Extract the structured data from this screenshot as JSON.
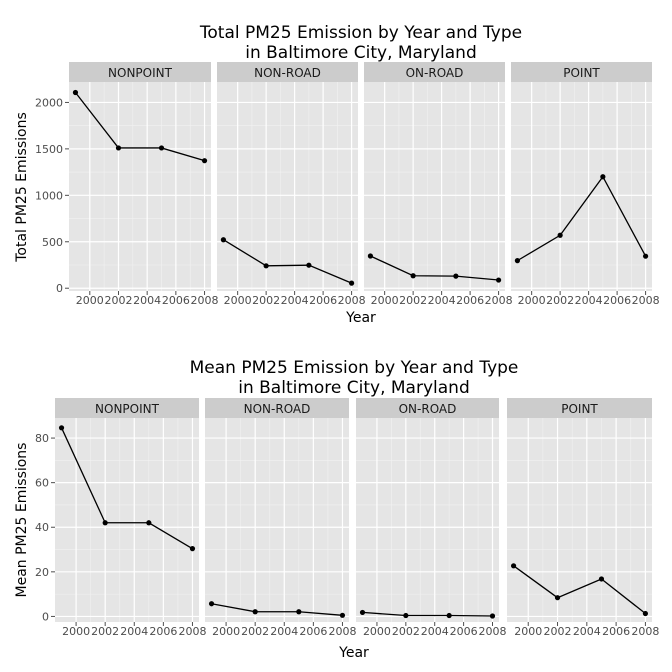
{
  "chart_data": [
    {
      "type": "line",
      "title": [
        "Total PM25 Emission by Year and Type",
        "in Baltimore City, Maryland"
      ],
      "xlabel": "Year",
      "ylabel": "Total PM25 Emissions",
      "x": [
        1999,
        2002,
        2005,
        2008
      ],
      "xticks": [
        "2000",
        "2002",
        "2004",
        "2006",
        "2008"
      ],
      "yticks": [
        "0",
        "500",
        "1000",
        "1500",
        "2000"
      ],
      "ylim": [
        -30,
        2220
      ],
      "xlim": [
        1998.55,
        2008.45
      ],
      "grid": true,
      "facets": [
        {
          "name": "NONPOINT",
          "values": [
            2107,
            1510,
            1510,
            1373
          ]
        },
        {
          "name": "NON-ROAD",
          "values": [
            522,
            241,
            248,
            55
          ]
        },
        {
          "name": "ON-ROAD",
          "values": [
            347,
            134,
            130,
            88
          ]
        },
        {
          "name": "POINT",
          "values": [
            297,
            570,
            1200,
            345
          ]
        }
      ]
    },
    {
      "type": "line",
      "title": [
        "Mean PM25 Emission by Year and Type",
        "in Baltimore City, Maryland"
      ],
      "xlabel": "Year",
      "ylabel": "Mean PM25 Emissions",
      "x": [
        1999,
        2002,
        2005,
        2008
      ],
      "xticks": [
        "2000",
        "2002",
        "2004",
        "2006",
        "2008"
      ],
      "yticks": [
        "0",
        "20",
        "40",
        "60",
        "80"
      ],
      "ylim": [
        -2.5,
        89
      ],
      "xlim": [
        1998.55,
        2008.45
      ],
      "grid": true,
      "facets": [
        {
          "name": "NONPOINT",
          "values": [
            84.6,
            42.0,
            42.0,
            30.4
          ]
        },
        {
          "name": "NON-ROAD",
          "values": [
            5.7,
            2.1,
            2.1,
            0.5
          ]
        },
        {
          "name": "ON-ROAD",
          "values": [
            1.8,
            0.4,
            0.4,
            0.2
          ]
        },
        {
          "name": "POINT",
          "values": [
            22.7,
            8.4,
            16.8,
            1.3
          ]
        }
      ]
    }
  ]
}
